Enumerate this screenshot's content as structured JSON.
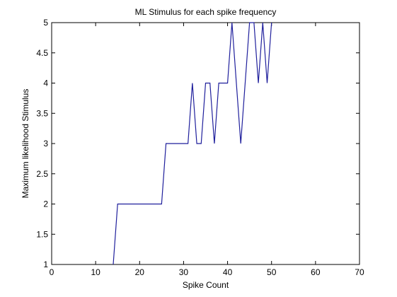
{
  "chart_data": {
    "type": "line",
    "title": "ML Stimulus for each spike frequency",
    "xlabel": "Spike Count",
    "ylabel": "Maximum likelihood Stimulus",
    "xlim": [
      0,
      70
    ],
    "ylim": [
      1,
      5
    ],
    "xticks": [
      0,
      10,
      20,
      30,
      40,
      50,
      60,
      70
    ],
    "yticks": [
      1,
      1.5,
      2,
      2.5,
      3,
      3.5,
      4,
      4.5,
      5
    ],
    "xtick_labels": [
      "0",
      "10",
      "20",
      "30",
      "40",
      "50",
      "60",
      "70"
    ],
    "ytick_labels": [
      "1",
      "1.5",
      "2",
      "2.5",
      "3",
      "3.5",
      "4",
      "4.5",
      "5"
    ],
    "grid": false,
    "series": [
      {
        "color": "#1f1f9c",
        "x": [
          14,
          15,
          16,
          17,
          18,
          19,
          20,
          21,
          22,
          23,
          24,
          25,
          26,
          27,
          28,
          29,
          30,
          31,
          32,
          33,
          34,
          35,
          36,
          37,
          38,
          39,
          40,
          41,
          42,
          43,
          44,
          45,
          46,
          47,
          48,
          49,
          50
        ],
        "y": [
          1,
          2,
          2,
          2,
          2,
          2,
          2,
          2,
          2,
          2,
          2,
          2,
          3,
          3,
          3,
          3,
          3,
          3,
          4,
          3,
          3,
          4,
          4,
          3,
          4,
          4,
          4,
          5,
          4,
          3,
          4,
          5,
          5,
          4,
          5,
          4,
          5
        ]
      }
    ]
  }
}
